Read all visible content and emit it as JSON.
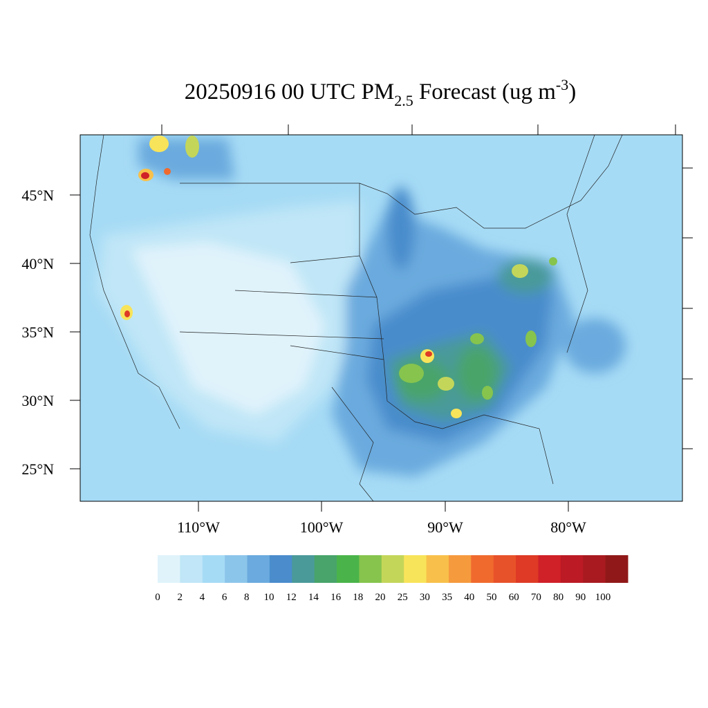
{
  "title": {
    "main": "20250916 00 UTC PM",
    "subscript": "2.5",
    "middle": " Forecast (ug m",
    "superscript": "-3",
    "end": ")"
  },
  "axes": {
    "lat_labels": [
      "45°N",
      "40°N",
      "35°N",
      "30°N",
      "25°N"
    ],
    "lon_labels": [
      "110°W",
      "100°W",
      "90°W",
      "80°W"
    ]
  },
  "colorbar": {
    "levels": [
      0,
      2,
      4,
      6,
      8,
      10,
      12,
      14,
      16,
      18,
      20,
      25,
      30,
      35,
      40,
      50,
      60,
      70,
      80,
      90,
      100
    ],
    "colors": [
      "#e0f3fb",
      "#c0e6f7",
      "#a6dbf5",
      "#8cc5ea",
      "#6aaade",
      "#4a8ccc",
      "#4a9a9a",
      "#48a46a",
      "#4ab44a",
      "#86c44e",
      "#c4d65a",
      "#f8e45a",
      "#f8c04a",
      "#f69a3e",
      "#f06a2e",
      "#e8522a",
      "#de3a26",
      "#d02028",
      "#bc1a24",
      "#a81a20",
      "#901818"
    ]
  }
}
